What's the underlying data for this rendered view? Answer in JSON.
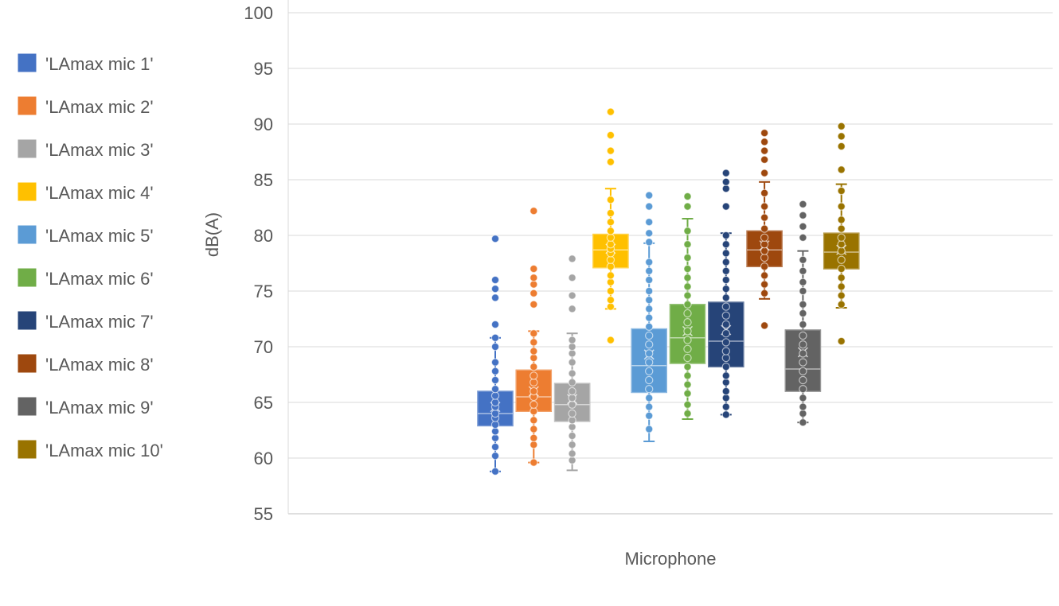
{
  "chart_data": {
    "type": "box",
    "title": "",
    "xlabel": "Microphone",
    "ylabel": "dB(A)",
    "ylim": [
      55,
      100
    ],
    "yticks": [
      55,
      60,
      65,
      70,
      75,
      80,
      85,
      90,
      95,
      100
    ],
    "grid": true,
    "legend_position": "left",
    "series": [
      {
        "name": "'LAmax mic 1'",
        "color": "#4472C4",
        "min": 58.8,
        "q1": 62.9,
        "median": 64.0,
        "q3": 66.0,
        "max": 70.8,
        "mean": 64.6,
        "points": [
          58.8,
          60.2,
          61.0,
          61.8,
          62.4,
          63.0,
          63.6,
          64.0,
          64.6,
          65.0,
          65.6,
          66.2,
          67.0,
          67.8,
          68.6,
          70.0,
          70.8,
          72.0,
          74.4,
          75.2,
          76.0,
          79.7
        ]
      },
      {
        "name": "'LAmax mic 2'",
        "color": "#ED7D31",
        "min": 59.6,
        "q1": 64.2,
        "median": 65.5,
        "q3": 67.9,
        "max": 71.4,
        "mean": 66.0,
        "points": [
          59.6,
          61.2,
          61.8,
          62.6,
          63.4,
          64.2,
          64.8,
          65.5,
          66.0,
          66.8,
          67.4,
          68.2,
          69.0,
          69.6,
          70.4,
          71.2,
          73.8,
          74.8,
          75.6,
          76.2,
          77.0,
          82.2
        ]
      },
      {
        "name": "'LAmax mic 3'",
        "color": "#A5A5A5",
        "min": 58.9,
        "q1": 63.3,
        "median": 64.8,
        "q3": 66.7,
        "max": 71.2,
        "mean": 65.3,
        "points": [
          59.8,
          60.4,
          61.2,
          62.0,
          62.8,
          63.4,
          64.0,
          64.8,
          65.4,
          66.0,
          66.8,
          67.6,
          68.6,
          69.4,
          70.0,
          70.6,
          73.4,
          74.6,
          76.2,
          77.9
        ]
      },
      {
        "name": "'LAmax mic 4'",
        "color": "#FFC000",
        "min": 73.4,
        "q1": 77.1,
        "median": 78.7,
        "q3": 80.1,
        "max": 84.2,
        "mean": 78.8,
        "points": [
          70.6,
          73.6,
          74.2,
          75.0,
          75.8,
          76.4,
          77.2,
          77.8,
          78.4,
          78.8,
          79.2,
          79.8,
          80.4,
          81.2,
          82.0,
          83.2,
          86.6,
          87.6,
          89.0,
          91.1
        ]
      },
      {
        "name": "'LAmax mic 5'",
        "color": "#5B9BD5",
        "min": 61.5,
        "q1": 65.9,
        "median": 68.3,
        "q3": 71.6,
        "max": 79.3,
        "mean": 69.3,
        "points": [
          62.6,
          63.8,
          64.6,
          65.4,
          66.2,
          67.0,
          67.8,
          68.6,
          69.4,
          70.2,
          71.0,
          71.8,
          72.6,
          73.4,
          74.2,
          75.0,
          76.0,
          76.8,
          77.6,
          79.4,
          80.2,
          81.2,
          82.6,
          83.6
        ]
      },
      {
        "name": "'LAmax mic 6'",
        "color": "#70AD47",
        "min": 63.5,
        "q1": 68.5,
        "median": 70.8,
        "q3": 73.8,
        "max": 81.5,
        "mean": 71.4,
        "points": [
          64.0,
          64.8,
          65.8,
          66.6,
          67.4,
          68.2,
          69.0,
          69.8,
          70.6,
          71.4,
          72.2,
          73.0,
          73.8,
          74.6,
          75.4,
          76.2,
          77.0,
          78.0,
          79.2,
          80.4,
          82.6,
          83.5
        ]
      },
      {
        "name": "'LAmax mic 7'",
        "color": "#264478",
        "min": 63.9,
        "q1": 68.2,
        "median": 70.5,
        "q3": 74.0,
        "max": 80.2,
        "mean": 71.5,
        "points": [
          63.9,
          64.6,
          65.4,
          66.0,
          66.8,
          67.4,
          68.2,
          69.0,
          69.6,
          70.4,
          71.2,
          72.0,
          72.8,
          73.6,
          74.4,
          75.2,
          76.0,
          76.8,
          77.6,
          78.4,
          79.2,
          80.0,
          82.6,
          84.2,
          84.8,
          85.6
        ]
      },
      {
        "name": "'LAmax mic 8'",
        "color": "#9E480E",
        "min": 74.3,
        "q1": 77.2,
        "median": 78.7,
        "q3": 80.4,
        "max": 84.8,
        "mean": 79.1,
        "points": [
          71.9,
          74.8,
          75.6,
          76.4,
          77.2,
          78.0,
          78.6,
          79.2,
          79.8,
          80.6,
          81.6,
          82.6,
          83.8,
          85.6,
          86.8,
          87.6,
          88.4,
          89.2
        ]
      },
      {
        "name": "'LAmax mic 9'",
        "color": "#636363",
        "min": 63.2,
        "q1": 66.0,
        "median": 68.0,
        "q3": 71.5,
        "max": 78.6,
        "mean": 69.5,
        "points": [
          63.2,
          64.0,
          64.6,
          65.4,
          66.2,
          67.0,
          67.8,
          68.6,
          69.4,
          70.2,
          71.0,
          72.0,
          73.0,
          73.8,
          75.0,
          75.8,
          76.8,
          77.8,
          79.8,
          80.8,
          81.8,
          82.8
        ]
      },
      {
        "name": "'LAmax mic 10'",
        "color": "#997300",
        "min": 73.5,
        "q1": 77.0,
        "median": 78.5,
        "q3": 80.2,
        "max": 84.6,
        "mean": 78.7,
        "points": [
          70.5,
          73.8,
          74.6,
          75.4,
          76.2,
          77.0,
          77.8,
          78.6,
          79.2,
          79.8,
          80.6,
          81.4,
          82.6,
          84.0,
          85.9,
          88.0,
          88.9,
          89.8
        ]
      }
    ]
  }
}
